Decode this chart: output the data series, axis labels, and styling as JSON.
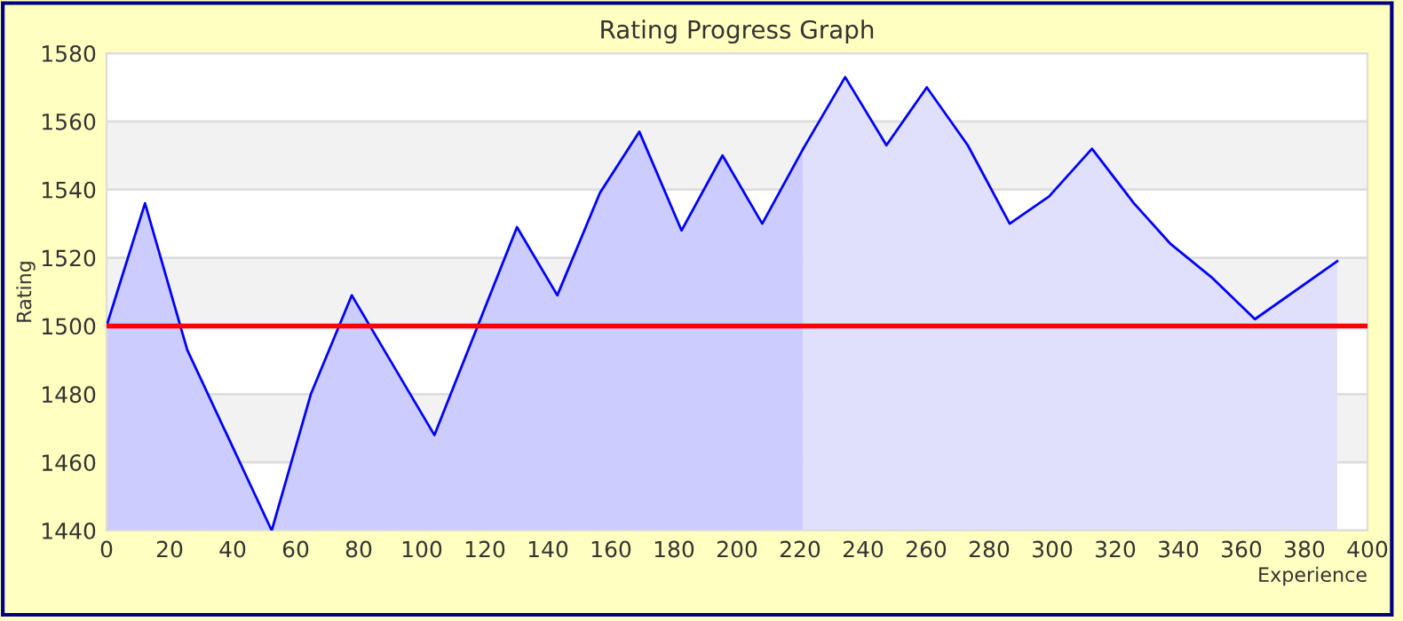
{
  "chart_data": {
    "type": "area",
    "title": "Rating Progress Graph",
    "xlabel": "Experience",
    "ylabel": "Rating",
    "series": [
      {
        "color": "#ccccff",
        "x": [
          0,
          12.2,
          25.6,
          52.4,
          64.8,
          77.8,
          104,
          130.2,
          143,
          156.5,
          169,
          182.4,
          195.4,
          208,
          221
        ],
        "values": [
          1500,
          1536,
          1493,
          1440,
          1480,
          1509,
          1468,
          1529,
          1509,
          1539,
          1557,
          1528,
          1550,
          1530,
          1552
        ]
      },
      {
        "color": "#e0e0fa",
        "x": [
          221,
          234.3,
          247.4,
          260.2,
          273.2,
          286.5,
          299,
          312.6,
          325.9,
          337.6,
          350.9,
          364.3,
          390.4
        ],
        "values": [
          1552,
          1573,
          1553,
          1570,
          1553,
          1530,
          1538,
          1552,
          1536,
          1524,
          1514,
          1502,
          1519
        ]
      }
    ],
    "xlim": [
      0,
      400
    ],
    "ylim": [
      1440,
      1580
    ],
    "xticks": [
      0,
      20,
      40,
      60,
      80,
      100,
      120,
      140,
      160,
      180,
      200,
      220,
      240,
      260,
      280,
      300,
      320,
      340,
      360,
      380,
      400
    ],
    "yticks": [
      1440,
      1460,
      1480,
      1500,
      1520,
      1540,
      1560,
      1580
    ],
    "grid": "y",
    "ref_lines": [
      {
        "axis": "y",
        "value": 1500,
        "color": "#ff0000"
      }
    ],
    "legend": false
  }
}
